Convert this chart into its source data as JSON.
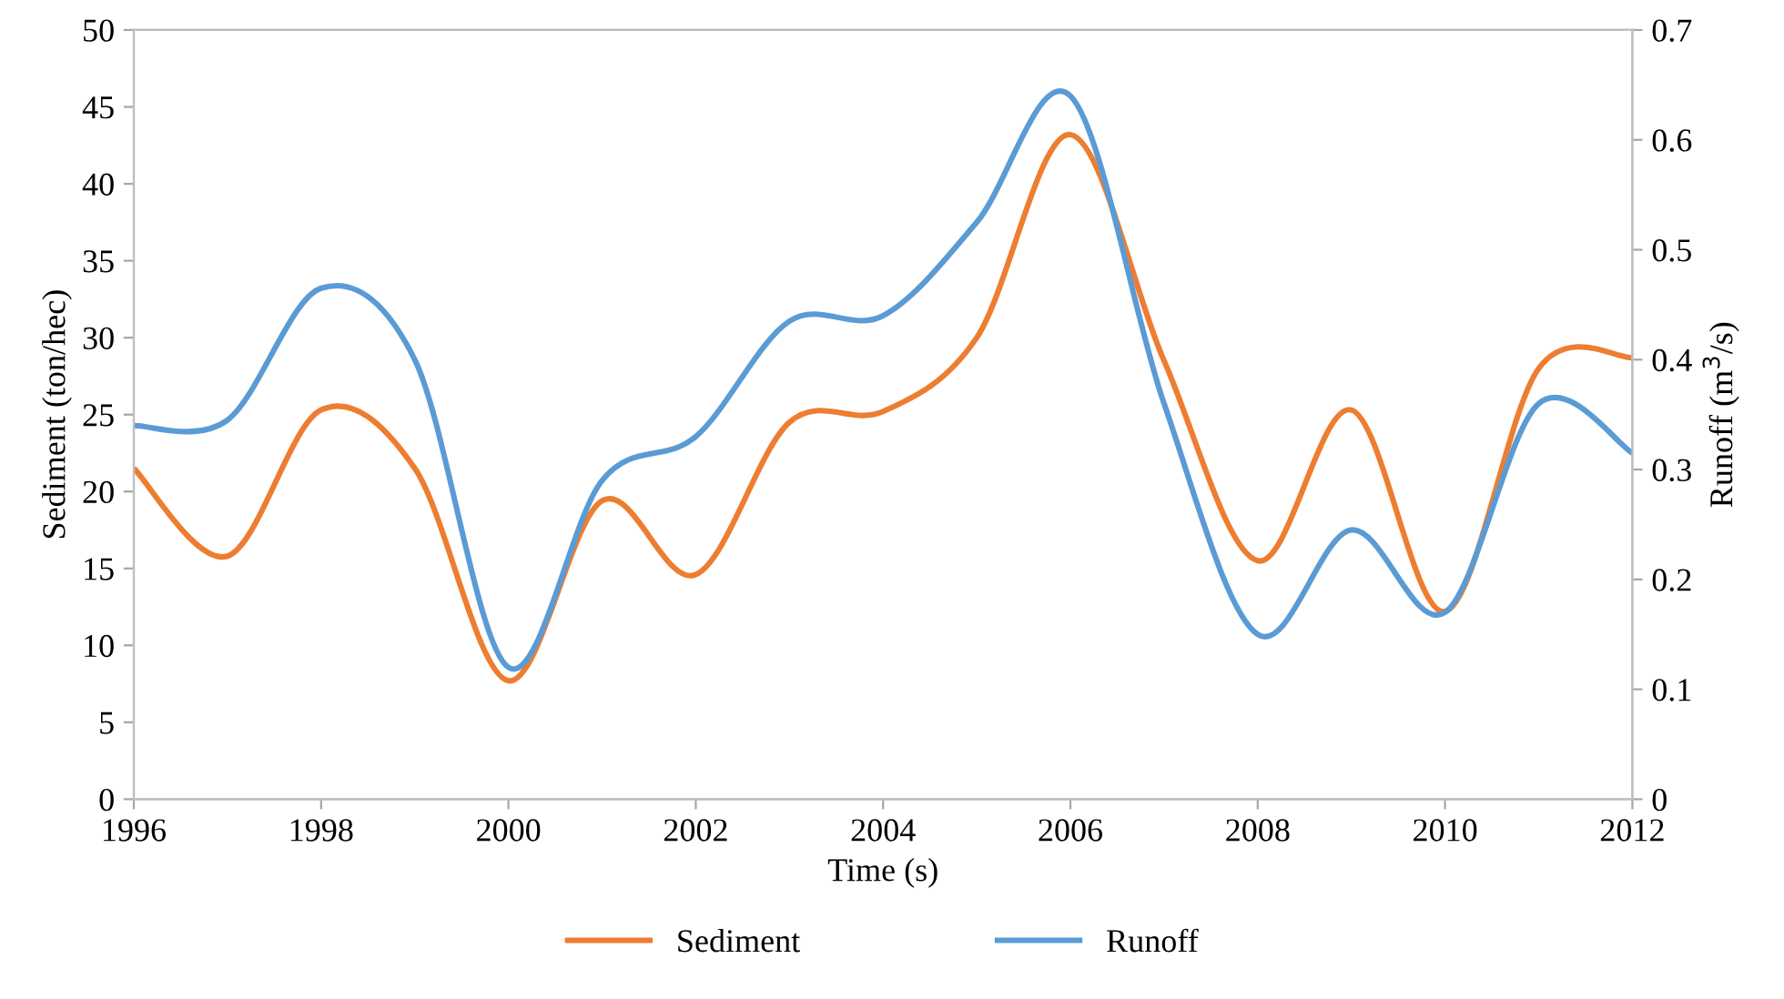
{
  "chart_data": {
    "type": "line",
    "xlabel": "Time (s)",
    "ylabel": "Sediment (ton/hec)",
    "y2label": "Runoff (m$^{3}$/s)",
    "x": [
      1996,
      1997,
      1998,
      1999,
      2000,
      2001,
      2002,
      2003,
      2004,
      2005,
      2006,
      2007,
      2008,
      2009,
      2010,
      2011,
      2012
    ],
    "series": [
      {
        "name": "Sediment",
        "color": "#ed7d31",
        "values": [
          21.5,
          15.8,
          25.3,
          21.5,
          7.7,
          19.4,
          14.6,
          24.5,
          25.2,
          30,
          43.2,
          28.5,
          15.5,
          25.3,
          12.2,
          28,
          28.7
        ]
      },
      {
        "name": "Runoff",
        "color": "#5b9bd5",
        "axis": "y2",
        "values": [
          0.34,
          0.345,
          0.465,
          0.4,
          0.12,
          0.29,
          0.33,
          0.435,
          0.44,
          0.525,
          0.64,
          0.36,
          0.15,
          0.245,
          0.17,
          0.36,
          0.315
        ]
      }
    ],
    "xlim": [
      1996,
      2012
    ],
    "xticks": [
      1996,
      1998,
      2000,
      2002,
      2004,
      2006,
      2008,
      2010,
      2012
    ],
    "ylim": [
      0,
      50
    ],
    "yticks": [
      0,
      5,
      10,
      15,
      20,
      25,
      30,
      35,
      40,
      45,
      50
    ],
    "y2lim": [
      0,
      0.7
    ],
    "y2ticks": [
      0,
      0.1,
      0.2,
      0.3,
      0.4,
      0.5,
      0.6,
      0.7
    ],
    "grid": false,
    "legend": "bottom",
    "marker": "none",
    "line_style": "solid"
  }
}
